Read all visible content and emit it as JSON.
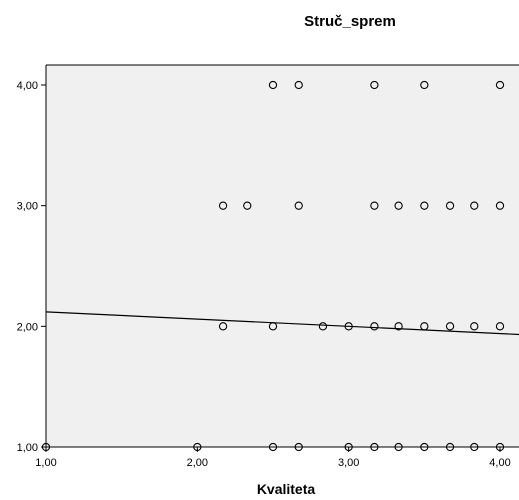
{
  "chart_data": {
    "type": "scatter",
    "title": "Struč_sprem",
    "xlabel": "Kvaliteta",
    "ylabel": "",
    "xlim": [
      1.0,
      4.0
    ],
    "ylim": [
      1.0,
      4.0
    ],
    "x_ticks": [
      "1,00",
      "2,00",
      "3,00",
      "4,00"
    ],
    "y_ticks": [
      "1,00",
      "2,00",
      "3,00",
      "4,00"
    ],
    "grid": false,
    "legend": "none",
    "colors": {
      "plot_background": "#f0f0f0",
      "marker": "#000000",
      "line": "#000000"
    },
    "points": [
      {
        "x": 2.5,
        "y": 4
      },
      {
        "x": 2.67,
        "y": 4
      },
      {
        "x": 3.17,
        "y": 4
      },
      {
        "x": 3.5,
        "y": 4
      },
      {
        "x": 4.0,
        "y": 4
      },
      {
        "x": 2.17,
        "y": 3
      },
      {
        "x": 2.33,
        "y": 3
      },
      {
        "x": 2.67,
        "y": 3
      },
      {
        "x": 3.17,
        "y": 3
      },
      {
        "x": 3.33,
        "y": 3
      },
      {
        "x": 3.5,
        "y": 3
      },
      {
        "x": 3.67,
        "y": 3
      },
      {
        "x": 3.83,
        "y": 3
      },
      {
        "x": 4.0,
        "y": 3
      },
      {
        "x": 2.17,
        "y": 2
      },
      {
        "x": 2.5,
        "y": 2
      },
      {
        "x": 2.83,
        "y": 2
      },
      {
        "x": 3.0,
        "y": 2
      },
      {
        "x": 3.17,
        "y": 2
      },
      {
        "x": 3.33,
        "y": 2
      },
      {
        "x": 3.5,
        "y": 2
      },
      {
        "x": 3.67,
        "y": 2
      },
      {
        "x": 3.83,
        "y": 2
      },
      {
        "x": 4.0,
        "y": 2
      },
      {
        "x": 1.0,
        "y": 1
      },
      {
        "x": 2.0,
        "y": 1
      },
      {
        "x": 2.5,
        "y": 1
      },
      {
        "x": 2.67,
        "y": 1
      },
      {
        "x": 3.0,
        "y": 1
      },
      {
        "x": 3.17,
        "y": 1
      },
      {
        "x": 3.33,
        "y": 1
      },
      {
        "x": 3.5,
        "y": 1
      },
      {
        "x": 3.67,
        "y": 1
      },
      {
        "x": 3.83,
        "y": 1
      },
      {
        "x": 4.0,
        "y": 1
      }
    ],
    "fit_line": {
      "x": [
        1.0,
        4.0
      ],
      "y": [
        2.12,
        1.94
      ]
    }
  }
}
